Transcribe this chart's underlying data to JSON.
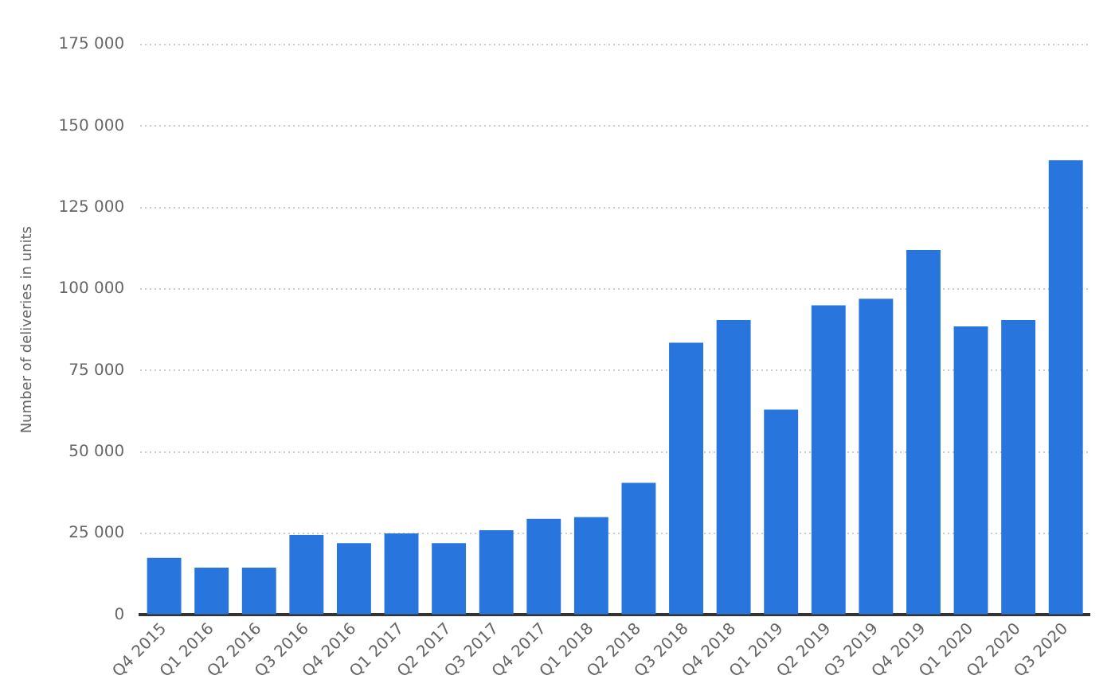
{
  "chart_data": {
    "type": "bar",
    "ylabel": "Number of deliveries in units",
    "categories": [
      "Q4 2015",
      "Q1 2016",
      "Q2 2016",
      "Q3 2016",
      "Q4 2016",
      "Q1 2017",
      "Q2 2017",
      "Q3 2017",
      "Q4 2017",
      "Q1 2018",
      "Q2 2018",
      "Q3 2018",
      "Q4 2018",
      "Q1 2019",
      "Q2 2019",
      "Q3 2019",
      "Q4 2019",
      "Q1 2020",
      "Q2 2020",
      "Q3 2020"
    ],
    "values": [
      17500,
      14500,
      14500,
      24500,
      22000,
      25000,
      22000,
      26000,
      29500,
      30000,
      40500,
      83500,
      90500,
      63000,
      95000,
      97000,
      112000,
      88500,
      90500,
      139500
    ],
    "color": "#2876dd",
    "ylim": [
      0,
      175000
    ],
    "yticks": [
      {
        "value": 0,
        "label": "0"
      },
      {
        "value": 25000,
        "label": "25 000"
      },
      {
        "value": 50000,
        "label": "50 000"
      },
      {
        "value": 75000,
        "label": "75 000"
      },
      {
        "value": 100000,
        "label": "100 000"
      },
      {
        "value": 125000,
        "label": "125 000"
      },
      {
        "value": 150000,
        "label": "150 000"
      },
      {
        "value": 175000,
        "label": "175 000"
      }
    ],
    "grid": "y"
  }
}
